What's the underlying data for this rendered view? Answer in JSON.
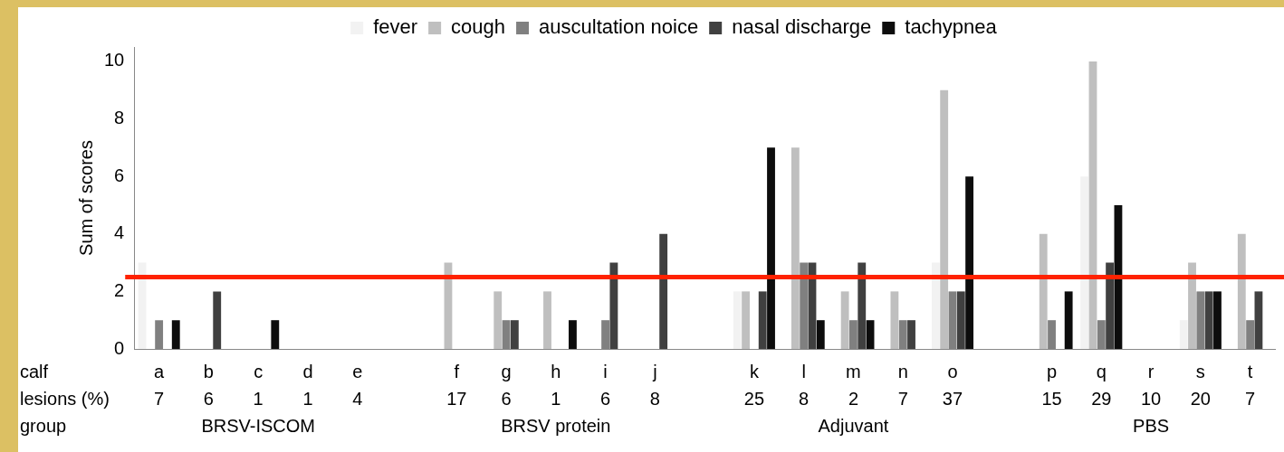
{
  "chart_data": {
    "type": "bar",
    "ylabel": "Sum of scores",
    "categories": [
      "a\n7",
      "b\n6",
      "c\n1",
      "d\n1",
      "e\n4",
      null,
      "f\n17",
      "g\n6",
      "h\n1",
      "i\n6",
      "j\n8",
      null,
      "k\n25",
      "l\n8",
      "m\n2",
      "n\n7",
      "o\n37",
      null,
      "p\n15",
      "q\n29",
      "r\n10",
      "s\n20",
      "t\n7"
    ],
    "series": [
      {
        "name": "fever",
        "color": "#f2f2f2",
        "values": [
          3,
          0,
          0,
          0,
          0,
          null,
          0,
          0,
          0,
          0,
          0,
          null,
          2,
          0,
          0,
          0,
          3,
          null,
          0,
          6,
          0,
          1,
          0
        ]
      },
      {
        "name": "cough",
        "color": "#bfbfbf",
        "values": [
          0,
          0,
          0,
          0,
          0,
          null,
          3,
          2,
          2,
          0,
          0,
          null,
          2,
          7,
          2,
          2,
          9,
          null,
          4,
          10,
          0,
          3,
          4
        ]
      },
      {
        "name": "auscultation noice",
        "color": "#808080",
        "values": [
          1,
          0,
          0,
          0,
          0,
          null,
          0,
          1,
          0,
          1,
          0,
          null,
          0,
          3,
          1,
          1,
          2,
          null,
          1,
          1,
          0,
          2,
          1
        ]
      },
      {
        "name": "nasal discharge",
        "color": "#404040",
        "values": [
          0,
          2,
          0,
          0,
          0,
          null,
          0,
          1,
          0,
          3,
          4,
          null,
          2,
          3,
          3,
          1,
          2,
          null,
          0,
          3,
          0,
          2,
          2
        ]
      },
      {
        "name": "tachypnea",
        "color": "#0d0d0d",
        "values": [
          1,
          0,
          1,
          0,
          0,
          null,
          0,
          0,
          1,
          0,
          0,
          null,
          7,
          1,
          1,
          0,
          6,
          null,
          2,
          5,
          0,
          2,
          0
        ]
      }
    ],
    "ylim": [
      0,
      10.5
    ],
    "yticks": [
      0,
      2,
      4,
      6,
      8,
      10
    ],
    "grid": false,
    "legend": "top",
    "ref_lines": [
      {
        "axis": "y",
        "value": 2.5,
        "color": "#ff2200"
      }
    ],
    "annotations": [
      "calf",
      "lesions (%)",
      "group",
      "BRSV-ISCOM",
      "BRSV protein",
      "Adjuvant",
      "PBS"
    ]
  }
}
